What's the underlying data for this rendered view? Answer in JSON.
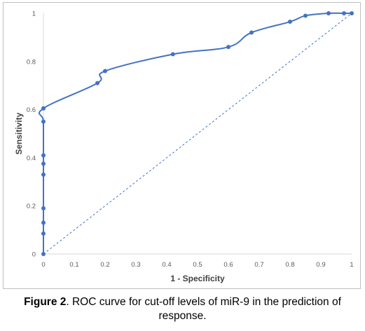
{
  "chart_data": {
    "type": "line",
    "title": "",
    "xlabel": "1 - Specificity",
    "ylabel": "Sensitivity",
    "xlim": [
      0,
      1
    ],
    "ylim": [
      0,
      1
    ],
    "x_ticks": [
      "0",
      "0.1",
      "0.2",
      "0.3",
      "0.4",
      "0.5",
      "0.6",
      "0.7",
      "0.8",
      "0.9",
      "1"
    ],
    "y_ticks": [
      "0",
      "0.2",
      "0.4",
      "0.6",
      "0.8",
      "1"
    ],
    "grid": "none",
    "series": [
      {
        "style": "solid-with-markers",
        "color": "#4472c4",
        "x": [
          0,
          0,
          0,
          0,
          0,
          0,
          0,
          0,
          0,
          0,
          0.175,
          0.2,
          0.42,
          0.6,
          0.675,
          0.8,
          0.85,
          0.925,
          0.975,
          1.0
        ],
        "y": [
          0,
          0.085,
          0.13,
          0.19,
          0.33,
          0.375,
          0.41,
          0.55,
          0.605,
          0.605,
          0.71,
          0.76,
          0.83,
          0.86,
          0.92,
          0.965,
          0.99,
          1.0,
          1.0,
          1.0
        ]
      },
      {
        "style": "dashed-reference",
        "color": "#4472c4",
        "x": [
          0,
          1
        ],
        "y": [
          0,
          1
        ]
      }
    ]
  },
  "caption": {
    "label": "Figure 2",
    "text": ". ROC curve for cut-off levels of miR-9 in the prediction of response."
  }
}
